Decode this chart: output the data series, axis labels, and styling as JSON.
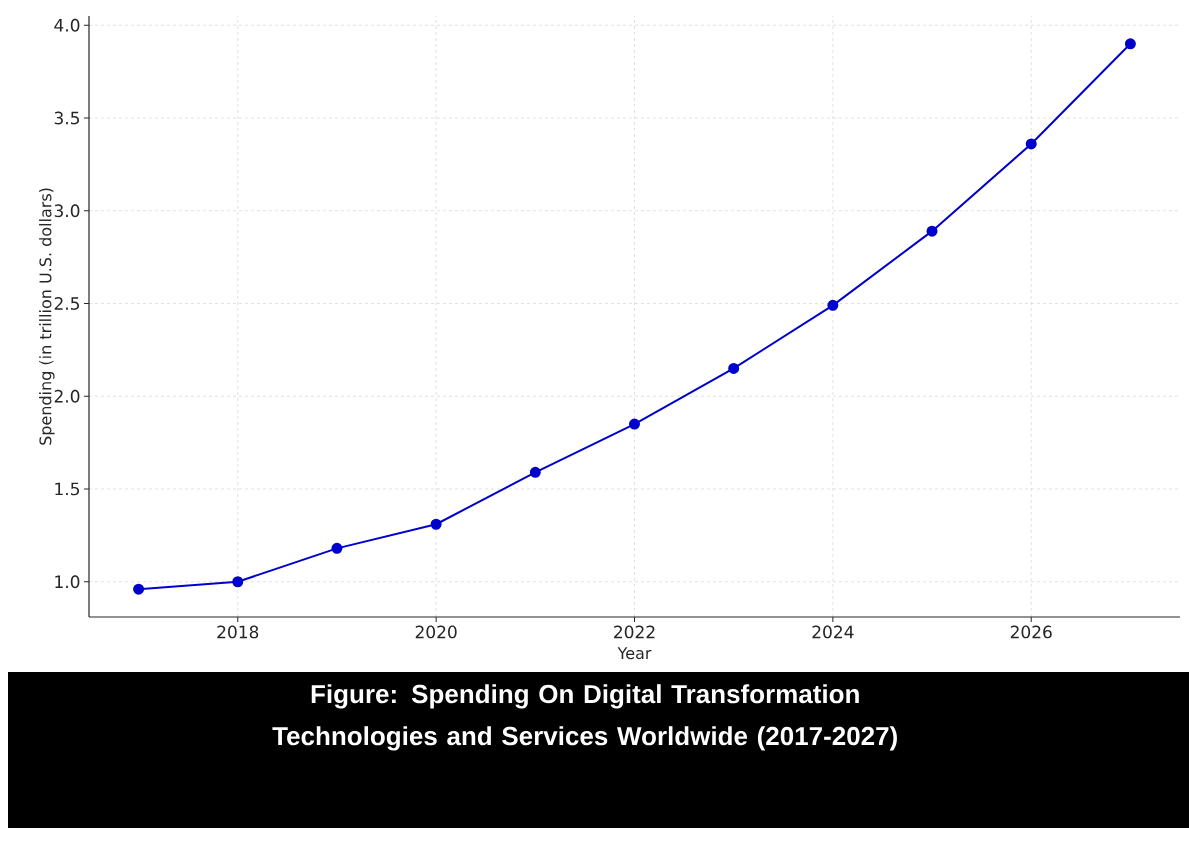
{
  "chart_data": {
    "type": "line",
    "title": "Figure: Spending On Digital Transformation Technologies and Services Worldwide (2017-2027)",
    "xlabel": "Year",
    "ylabel": "Spending (in trillion U.S. dollars)",
    "x": [
      2017,
      2018,
      2019,
      2020,
      2021,
      2022,
      2023,
      2024,
      2025,
      2026,
      2027
    ],
    "series": [
      {
        "color": "#0000cc",
        "values": [
          0.96,
          1.0,
          1.18,
          1.31,
          1.59,
          1.85,
          2.15,
          2.49,
          2.89,
          3.36,
          3.9
        ]
      }
    ],
    "xlim": [
      2016.5,
      2027.5
    ],
    "ylim": [
      0.81,
      4.05
    ],
    "xticks": [
      2018,
      2020,
      2022,
      2024,
      2026
    ],
    "yticks": [
      {
        "value": 1,
        "label": "1.0"
      },
      {
        "value": 1.5,
        "label": "1.5"
      },
      {
        "value": 2,
        "label": "2.0"
      },
      {
        "value": 2.5,
        "label": "2.5"
      },
      {
        "value": 3,
        "label": "3.0"
      },
      {
        "value": 3.5,
        "label": "3.5"
      },
      {
        "value": 4,
        "label": "4.0"
      }
    ],
    "grid": true,
    "marker": "circle",
    "line_style": "solid"
  }
}
